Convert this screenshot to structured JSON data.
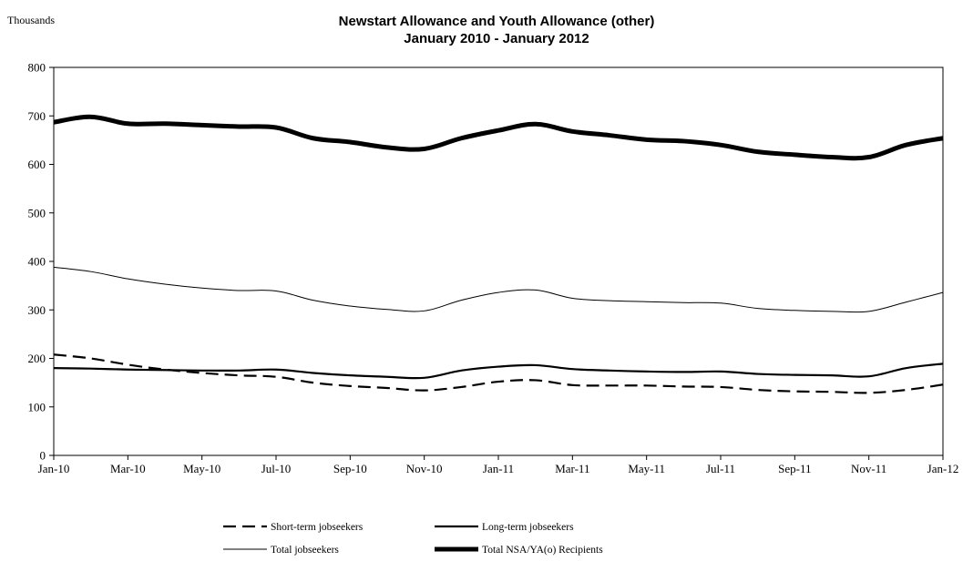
{
  "chart_data": {
    "type": "line",
    "title_line1": "Newstart Allowance and Youth Allowance (other)",
    "title_line2": "January 2010 - January 2012",
    "y_unit_label": "Thousands",
    "ylim": [
      0,
      800
    ],
    "y_ticks": [
      0,
      100,
      200,
      300,
      400,
      500,
      600,
      700,
      800
    ],
    "grid": false,
    "legend_position": "bottom",
    "x": [
      "Jan-10",
      "Feb-10",
      "Mar-10",
      "Apr-10",
      "May-10",
      "Jun-10",
      "Jul-10",
      "Aug-10",
      "Sep-10",
      "Oct-10",
      "Nov-10",
      "Dec-10",
      "Jan-11",
      "Feb-11",
      "Mar-11",
      "Apr-11",
      "May-11",
      "Jun-11",
      "Jul-11",
      "Aug-11",
      "Sep-11",
      "Oct-11",
      "Nov-11",
      "Dec-11",
      "Jan-12"
    ],
    "x_tick_labels": [
      "Jan-10",
      "Mar-10",
      "May-10",
      "Jul-10",
      "Sep-10",
      "Nov-10",
      "Jan-11",
      "Mar-11",
      "May-11",
      "Jul-11",
      "Sep-11",
      "Nov-11",
      "Jan-12"
    ],
    "series": [
      {
        "name": "Short-term jobseekers",
        "style": "dashed",
        "values": [
          208,
          200,
          187,
          177,
          170,
          165,
          162,
          150,
          143,
          139,
          134,
          141,
          152,
          155,
          145,
          144,
          144,
          142,
          141,
          135,
          132,
          131,
          129,
          135,
          146
        ]
      },
      {
        "name": "Long-term jobseekers",
        "style": "solid-medium",
        "values": [
          180,
          179,
          177,
          176,
          175,
          175,
          177,
          170,
          165,
          162,
          160,
          175,
          183,
          186,
          178,
          175,
          173,
          172,
          173,
          168,
          166,
          165,
          163,
          180,
          189
        ]
      },
      {
        "name": "Total jobseekers",
        "style": "solid-thin",
        "values": [
          388,
          379,
          364,
          353,
          345,
          340,
          339,
          320,
          308,
          301,
          298,
          320,
          336,
          341,
          324,
          319,
          317,
          315,
          314,
          303,
          299,
          297,
          297,
          316,
          336
        ]
      },
      {
        "name": "Total NSA/YA(o) Recipients",
        "style": "solid-thick",
        "values": [
          687,
          698,
          684,
          684,
          681,
          678,
          676,
          654,
          646,
          635,
          632,
          654,
          670,
          683,
          668,
          660,
          651,
          648,
          640,
          626,
          620,
          615,
          615,
          640,
          654
        ]
      }
    ]
  }
}
